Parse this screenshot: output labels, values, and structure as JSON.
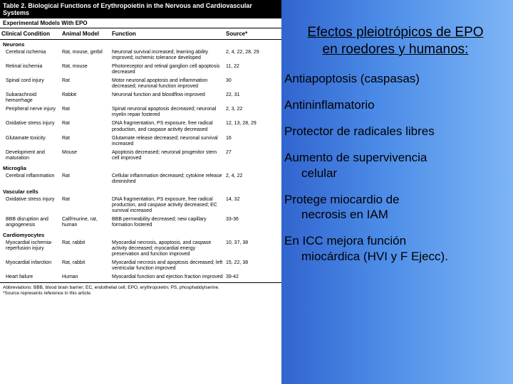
{
  "table": {
    "title": "Table 2. Biological Functions of Erythropoietin in the Nervous and Cardiovascular Systems",
    "header_row": "Experimental Models With EPO",
    "columns": [
      "Clinical Condition",
      "Animal Model",
      "Function",
      "Source*"
    ],
    "sections": [
      {
        "name": "Neurons",
        "rows": [
          {
            "c1": "Cerebral ischemia",
            "c2": "Rat, mouse, gerbil",
            "c3": "Neuronal survival increased; learning ability improved; ischemic tolerance developed",
            "c4": "2, 4, 22, 28, 29"
          },
          {
            "c1": "Retinal ischemia",
            "c2": "Rat, mouse",
            "c3": "Photoreceptor and retinal ganglion cell apoptosis decreased",
            "c4": "11, 22"
          },
          {
            "c1": "Spinal cord injury",
            "c2": "Rat",
            "c3": "Motor neuronal apoptosis and inflammation decreased; neuronal function improved",
            "c4": "30"
          },
          {
            "c1": "Subarachnoid hemorrhage",
            "c2": "Rabbit",
            "c3": "Neuronal function and bloodflow improved",
            "c4": "22, 31"
          },
          {
            "c1": "Peripheral nerve injury",
            "c2": "Rat",
            "c3": "Spinal neuronal apoptosis decreased; neuronal myelin repair fostered",
            "c4": "2, 3, 22"
          },
          {
            "c1": "Oxidative stress injury",
            "c2": "Rat",
            "c3": "DNA fragmentation, PS exposure, free radical production, and caspase activity decreased",
            "c4": "12, 13, 28, 29"
          },
          {
            "c1": "Glutamate toxicity",
            "c2": "Rat",
            "c3": "Glutamate release decreased; neuronal survival increased",
            "c4": "16"
          },
          {
            "c1": "Development and maturation",
            "c2": "Mouse",
            "c3": "Apoptosis decreased; neuronal progenitor stem cell improved",
            "c4": "27"
          }
        ]
      },
      {
        "name": "Microglia",
        "rows": [
          {
            "c1": "Cerebral inflammation",
            "c2": "Rat",
            "c3": "Cellular inflammation decreased; cytokine release diminished",
            "c4": "2, 4, 22"
          }
        ]
      },
      {
        "name": "Vascular cells",
        "rows": [
          {
            "c1": "Oxidative stress injury",
            "c2": "Rat",
            "c3": "DNA fragmentation, PS exposure, free radical production, and caspase activity decreased; EC survival increased",
            "c4": "14, 32"
          },
          {
            "c1": "BBB disruption and angiogenesis",
            "c2": "Calf/murine, rat, human",
            "c3": "BBB permeability decreased; new capillary formation fostered",
            "c4": "33-36"
          }
        ]
      },
      {
        "name": "Cardiomyocytes",
        "rows": [
          {
            "c1": "Myocardial ischemia-reperfusion injury",
            "c2": "Rat, rabbit",
            "c3": "Myocardial necrosis, apoptosis, and caspase activity decreased; myocardial energy preservation and function improved",
            "c4": "10, 37, 38"
          },
          {
            "c1": "Myocardial infarction",
            "c2": "Rat, rabbit",
            "c3": "Myocardial necrosis and apoptosis decreased; left ventricular function improved",
            "c4": "15, 22, 38"
          },
          {
            "c1": "Heart failure",
            "c2": "Human",
            "c3": "Myocardial function and ejection fraction improved",
            "c4": "39-42"
          }
        ]
      }
    ],
    "abbrev": "Abbreviations: BBB, blood brain barrier; EC, endothelial cell; EPO, erythropoietin; PS, phosphatidylserine.\n*Source represents reference in this article."
  },
  "overlay": {
    "title_l1": "Efectos  pleiotrópicos de EPO",
    "title_l2": "en roedores y humanos:",
    "items": [
      {
        "t": "Antiapoptosis (caspasas)"
      },
      {
        "t": "Antininflamatorio"
      },
      {
        "t": "Protector de radicales libres"
      },
      {
        "t": "Aumento de supervivencia",
        "s": "celular"
      },
      {
        "t": "Protege miocardio de",
        "s": "necrosis en IAM"
      },
      {
        "t": "En ICC mejora función",
        "s": "miocárdica (HVI y F Ejecc)."
      }
    ]
  },
  "colors": {
    "gradient_start": "#0d1b4c",
    "gradient_end": "#7db5f5",
    "text": "#000000",
    "table_bg": "#ffffff",
    "title_bg": "#000000",
    "title_fg": "#ffffff"
  }
}
